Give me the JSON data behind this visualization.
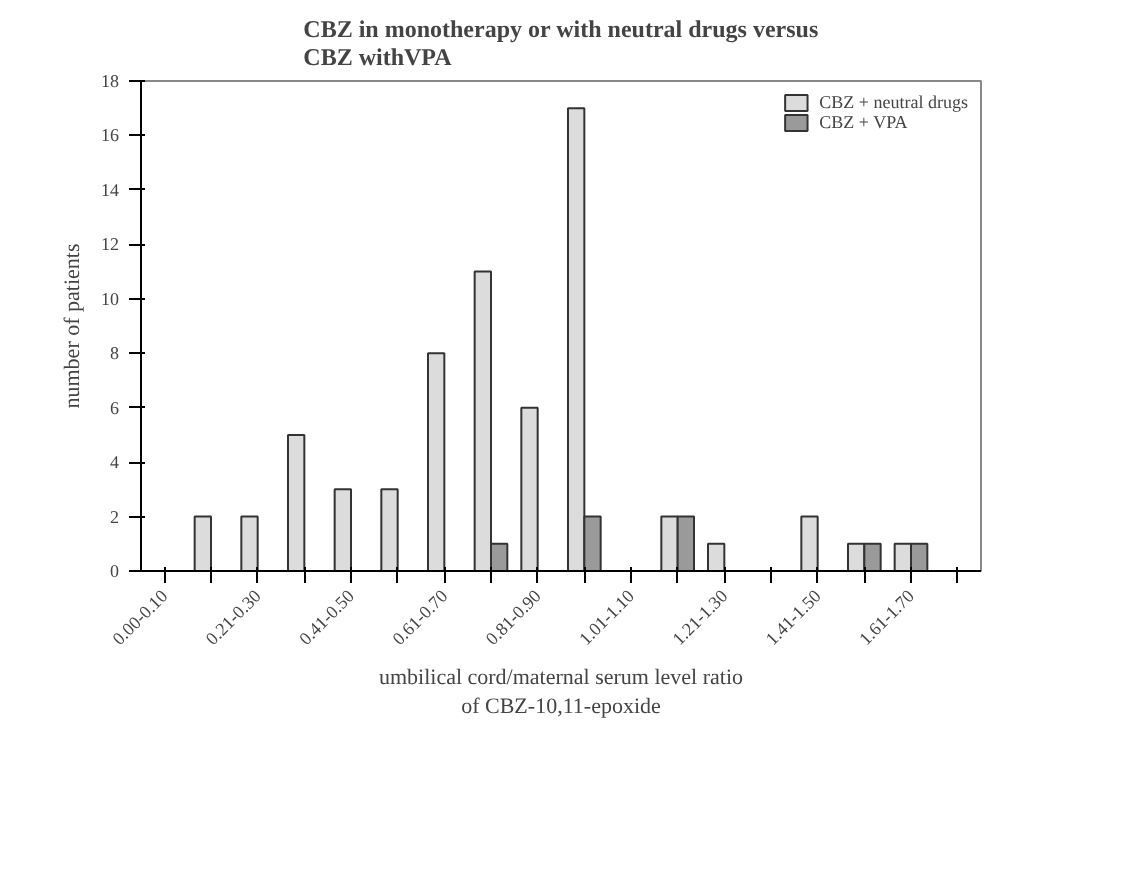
{
  "chart_data": {
    "type": "bar",
    "title": "CBZ in monotherapy or with neutral drugs versus\nCBZ withVPA",
    "xlabel": "umbilical cord/maternal serum level ratio\nof CBZ-10,11-epoxide",
    "ylabel": "number of patients",
    "categories": [
      "0.00-0.10",
      null,
      "0.21-0.30",
      null,
      "0.41-0.50",
      null,
      "0.61-0.70",
      null,
      "0.81-0.90",
      null,
      "1.01-1.10",
      null,
      "1.21-1.30",
      null,
      "1.41-1.50",
      null,
      "1.61-1.70",
      null
    ],
    "series": [
      {
        "name": "CBZ + neutral drugs",
        "color": "#dcdcdc",
        "values": [
          null,
          2,
          2,
          5,
          3,
          3,
          8,
          11,
          6,
          17,
          null,
          2,
          1,
          null,
          2,
          1,
          1,
          null
        ]
      },
      {
        "name": "CBZ + VPA",
        "color": "#9a9a9a",
        "values": [
          null,
          null,
          null,
          null,
          null,
          null,
          null,
          1,
          null,
          2,
          null,
          2,
          null,
          null,
          null,
          1,
          1,
          null
        ]
      }
    ],
    "ylim": [
      0,
      18
    ],
    "yticks": [
      0,
      2,
      4,
      6,
      8,
      10,
      12,
      14,
      16,
      18
    ],
    "grid": false,
    "legend": "top right"
  }
}
